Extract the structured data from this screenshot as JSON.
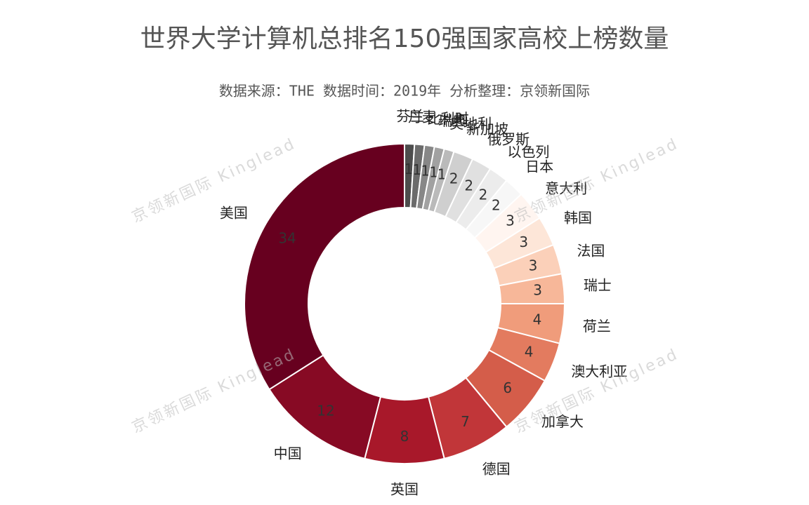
{
  "chart_data": {
    "type": "donut",
    "title": "世界大学计算机总排名150强国家高校上榜数量",
    "subtitle": "数据来源：THE 数据时间：2019年 分析整理：京领新国际",
    "watermark": "京领新国际 Kinglead",
    "categories": [
      "芬兰",
      "丹麦",
      "比利时",
      "瑞典",
      "奥地利",
      "新加坡",
      "俄罗斯",
      "以色列",
      "日本",
      "意大利",
      "韩国",
      "法国",
      "瑞士",
      "荷兰",
      "澳大利亚",
      "加拿大",
      "德国",
      "英国",
      "中国",
      "美国"
    ],
    "values": [
      1,
      1,
      1,
      1,
      1,
      2,
      2,
      2,
      2,
      3,
      3,
      3,
      3,
      4,
      4,
      6,
      7,
      8,
      12,
      34
    ],
    "colors": [
      "#4d4d4d",
      "#6b6b6b",
      "#878787",
      "#a1a1a1",
      "#bababa",
      "#cfcfcf",
      "#e0e0e0",
      "#ececec",
      "#f7f7f7",
      "#fff5f0",
      "#fde6d8",
      "#fbd0b9",
      "#f7b799",
      "#f09c7b",
      "#e37b5f",
      "#d45d4a",
      "#c13639",
      "#a8182a",
      "#870a24",
      "#67001f"
    ]
  }
}
